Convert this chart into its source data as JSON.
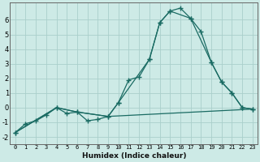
{
  "xlabel": "Humidex (Indice chaleur)",
  "background_color": "#cdeae6",
  "grid_color": "#aacfcb",
  "line_color": "#1a6b63",
  "xlim": [
    -0.5,
    23.5
  ],
  "ylim": [
    -2.5,
    7.2
  ],
  "yticks": [
    -2,
    -1,
    0,
    1,
    2,
    3,
    4,
    5,
    6
  ],
  "xticks": [
    0,
    1,
    2,
    3,
    4,
    5,
    6,
    7,
    8,
    9,
    10,
    11,
    12,
    13,
    14,
    15,
    16,
    17,
    18,
    19,
    20,
    21,
    22,
    23
  ],
  "line1_x": [
    0,
    1,
    2,
    3,
    4,
    5,
    6,
    7,
    8,
    9,
    10,
    11,
    12,
    13,
    14,
    15,
    16,
    17,
    18,
    19,
    20,
    21,
    22,
    23
  ],
  "line1_y": [
    -1.7,
    -1.1,
    -0.9,
    -0.5,
    0.0,
    -0.4,
    -0.3,
    -0.9,
    -0.8,
    -0.6,
    0.35,
    1.9,
    2.1,
    3.3,
    5.8,
    6.6,
    6.8,
    6.1,
    5.2,
    3.1,
    1.75,
    1.0,
    0.0,
    -0.1
  ],
  "line2_x": [
    0,
    4,
    6,
    9,
    10,
    13,
    14,
    15,
    17,
    19,
    20,
    21,
    22,
    23
  ],
  "line2_y": [
    -1.7,
    0.0,
    -0.3,
    -0.6,
    0.35,
    3.3,
    5.8,
    6.6,
    6.1,
    3.1,
    1.75,
    1.0,
    0.0,
    -0.1
  ],
  "line3_x": [
    0,
    4,
    6,
    9,
    23
  ],
  "line3_y": [
    -1.7,
    0.0,
    -0.3,
    -0.6,
    -0.1
  ]
}
